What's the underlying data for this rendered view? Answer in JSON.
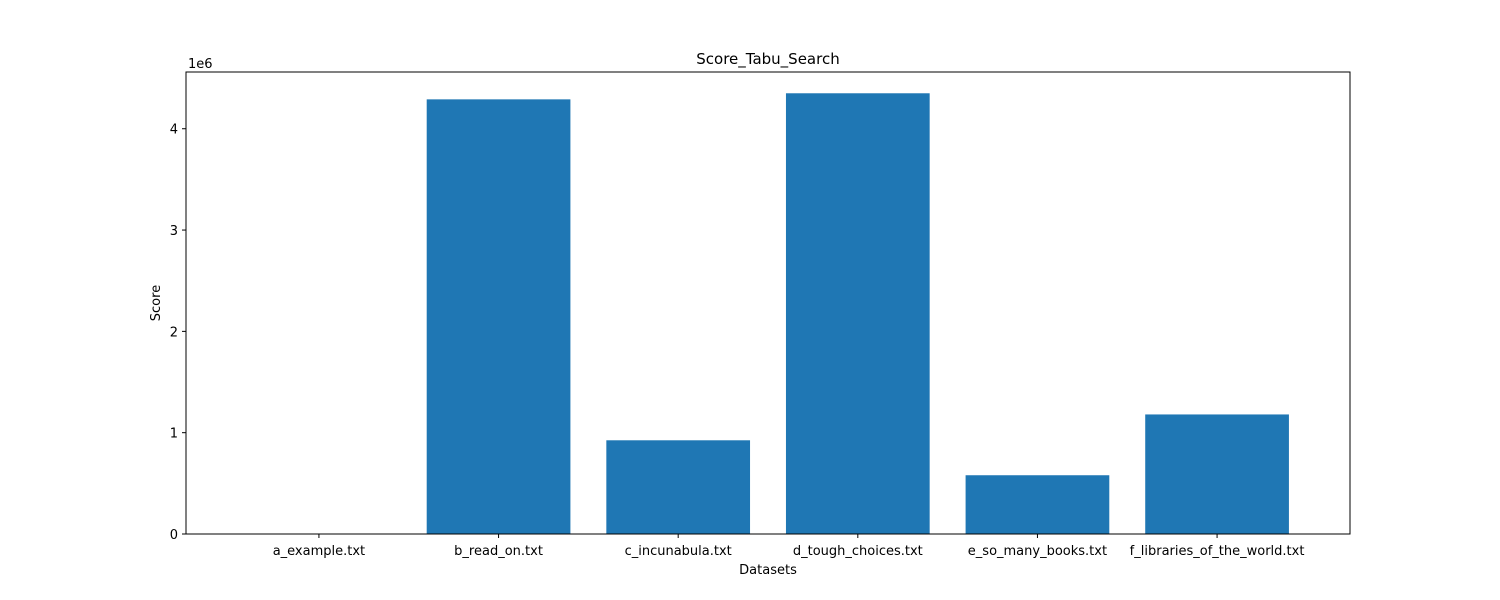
{
  "chart_data": {
    "type": "bar",
    "title": "Score_Tabu_Search",
    "xlabel": "Datasets",
    "ylabel": "Score",
    "y_offset_text": "1e6",
    "categories": [
      "a_example.txt",
      "b_read_on.txt",
      "c_incunabula.txt",
      "d_tough_choices.txt",
      "e_so_many_books.txt",
      "f_libraries_of_the_world.txt"
    ],
    "values": [
      21,
      4290000,
      925000,
      4350000,
      580000,
      1180000
    ],
    "ylim": [
      0,
      4560000
    ],
    "yticks": [
      0,
      1000000,
      2000000,
      3000000,
      4000000
    ],
    "ytick_labels": [
      "0",
      "1",
      "2",
      "3",
      "4"
    ],
    "bar_color": "#1f77b4",
    "grid": false
  }
}
